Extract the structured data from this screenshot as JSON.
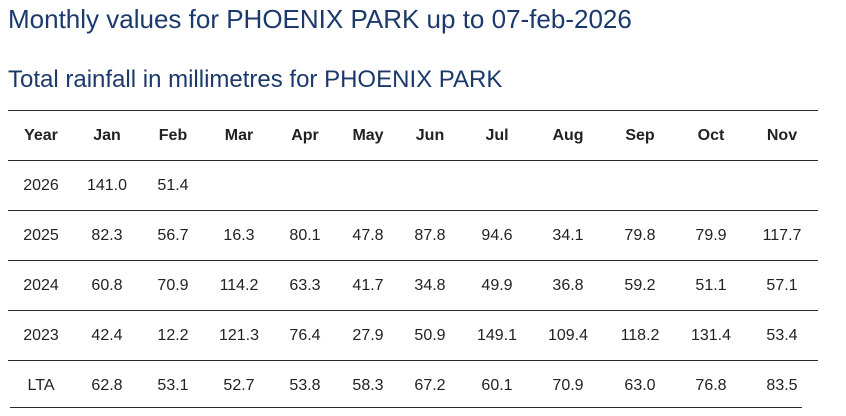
{
  "page": {
    "title": "Monthly values for PHOENIX PARK up to 07-feb-2026",
    "section_title": "Total rainfall in millimetres for PHOENIX PARK"
  },
  "table": {
    "headers": [
      "Year",
      "Jan",
      "Feb",
      "Mar",
      "Apr",
      "May",
      "Jun",
      "Jul",
      "Aug",
      "Sep",
      "Oct",
      "Nov"
    ],
    "rows": [
      [
        "2026",
        "141.0",
        "51.4",
        "",
        "",
        "",
        "",
        "",
        "",
        "",
        "",
        ""
      ],
      [
        "2025",
        "82.3",
        "56.7",
        "16.3",
        "80.1",
        "47.8",
        "87.8",
        "94.6",
        "34.1",
        "79.8",
        "79.9",
        "117.7"
      ],
      [
        "2024",
        "60.8",
        "70.9",
        "114.2",
        "63.3",
        "41.7",
        "34.8",
        "49.9",
        "36.8",
        "59.2",
        "51.1",
        "57.1"
      ],
      [
        "2023",
        "42.4",
        "12.2",
        "121.3",
        "76.4",
        "27.9",
        "50.9",
        "149.1",
        "109.4",
        "118.2",
        "131.4",
        "53.4"
      ],
      [
        "LTA",
        "62.8",
        "53.1",
        "52.7",
        "53.8",
        "58.3",
        "67.2",
        "60.1",
        "70.9",
        "63.0",
        "76.8",
        "83.5"
      ]
    ]
  }
}
